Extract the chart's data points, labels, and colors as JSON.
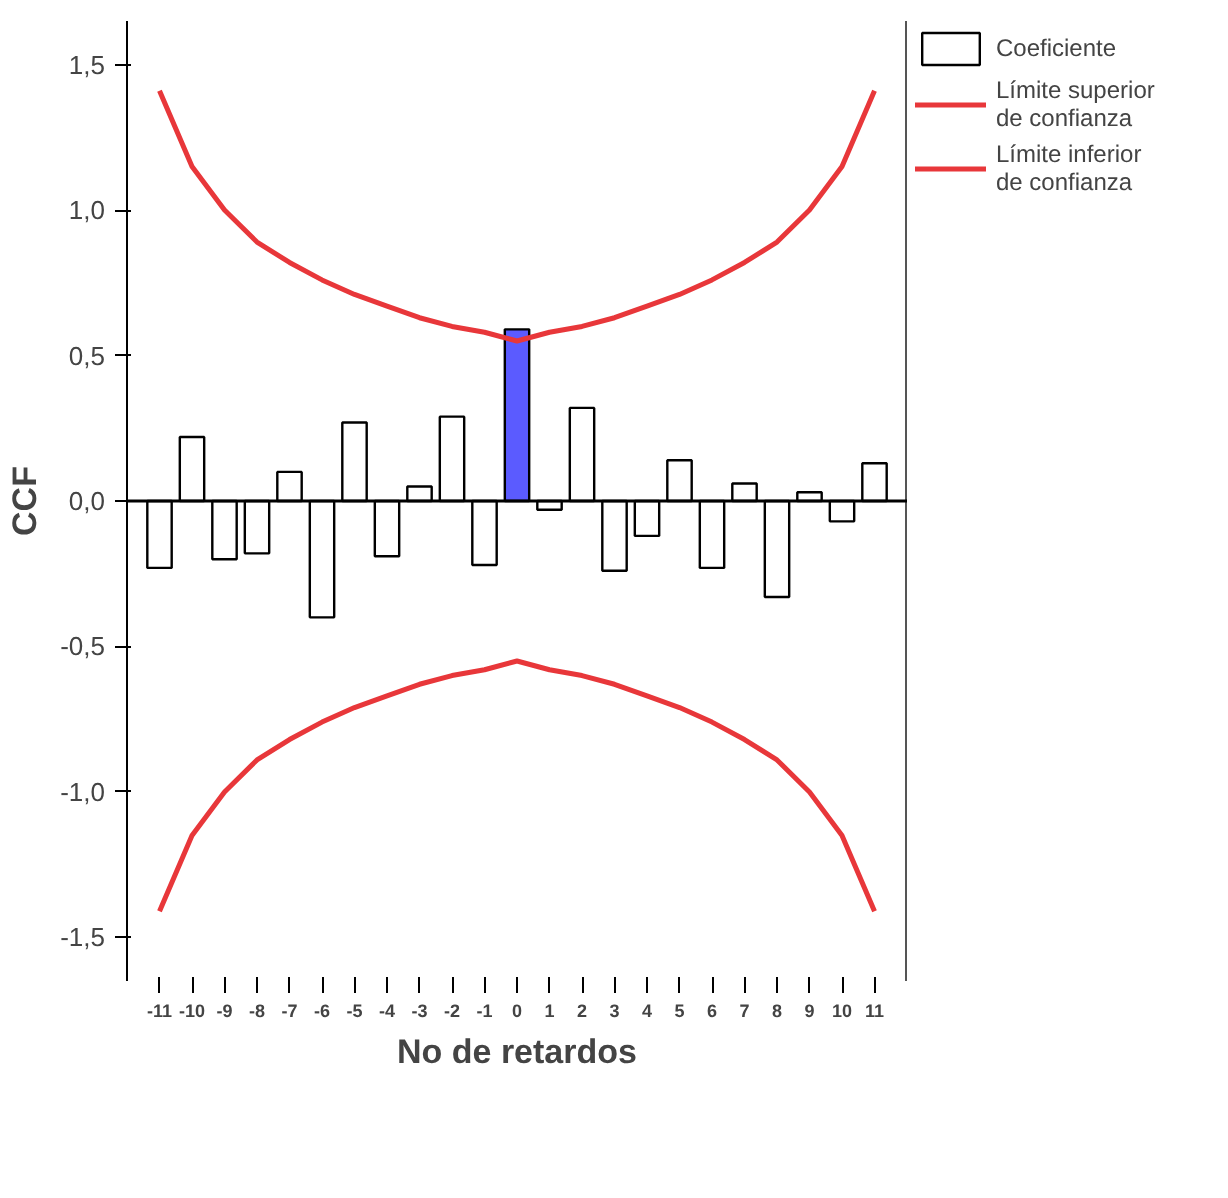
{
  "chart_data": {
    "type": "bar",
    "xlabel": "No de retardos",
    "ylabel": "CCF",
    "categories": [
      "-11",
      "-10",
      "-9",
      "-8",
      "-7",
      "-6",
      "-5",
      "-4",
      "-3",
      "-2",
      "-1",
      "0",
      "1",
      "2",
      "3",
      "4",
      "5",
      "6",
      "7",
      "8",
      "9",
      "10",
      "11"
    ],
    "series": [
      {
        "name": "Coeficiente",
        "colors": [
          "#ffffff",
          "#ffffff",
          "#ffffff",
          "#ffffff",
          "#ffffff",
          "#ffffff",
          "#ffffff",
          "#ffffff",
          "#ffffff",
          "#ffffff",
          "#ffffff",
          "#5b5bff",
          "#ffffff",
          "#ffffff",
          "#ffffff",
          "#ffffff",
          "#ffffff",
          "#ffffff",
          "#ffffff",
          "#ffffff",
          "#ffffff",
          "#ffffff",
          "#ffffff"
        ],
        "values": [
          -0.23,
          0.22,
          -0.2,
          -0.18,
          0.1,
          -0.4,
          0.27,
          -0.19,
          0.05,
          0.29,
          -0.22,
          0.59,
          -0.03,
          0.32,
          -0.24,
          -0.12,
          0.14,
          -0.23,
          0.06,
          -0.33,
          0.03,
          -0.07,
          0.13
        ]
      },
      {
        "name": "Límite superior de confianza",
        "type": "line",
        "color": "#e8373a",
        "values": [
          1.41,
          1.15,
          1.0,
          0.89,
          0.82,
          0.76,
          0.71,
          0.67,
          0.63,
          0.6,
          0.58,
          0.55,
          0.58,
          0.6,
          0.63,
          0.67,
          0.71,
          0.76,
          0.82,
          0.89,
          1.0,
          1.15,
          1.41
        ]
      },
      {
        "name": "Límite inferior de confianza",
        "type": "line",
        "color": "#e8373a",
        "values": [
          -1.41,
          -1.15,
          -1.0,
          -0.89,
          -0.82,
          -0.76,
          -0.71,
          -0.67,
          -0.63,
          -0.6,
          -0.58,
          -0.55,
          -0.58,
          -0.6,
          -0.63,
          -0.67,
          -0.71,
          -0.76,
          -0.82,
          -0.89,
          -1.0,
          -1.15,
          -1.41
        ]
      }
    ],
    "ylim": [
      -1.65,
      1.65
    ],
    "yticks": [
      {
        "value": -1.5,
        "label": "-1,5"
      },
      {
        "value": -1.0,
        "label": "-1,0"
      },
      {
        "value": -0.5,
        "label": "-0,5"
      },
      {
        "value": 0,
        "label": "0,0"
      },
      {
        "value": 0.5,
        "label": "0,5"
      },
      {
        "value": 1.0,
        "label": "1,0"
      },
      {
        "value": 1.5,
        "label": "1,5"
      }
    ],
    "ref_lines": [
      {
        "axis": "y",
        "value": 0,
        "color": "#000000"
      }
    ],
    "grid": false,
    "legend": "top right"
  }
}
